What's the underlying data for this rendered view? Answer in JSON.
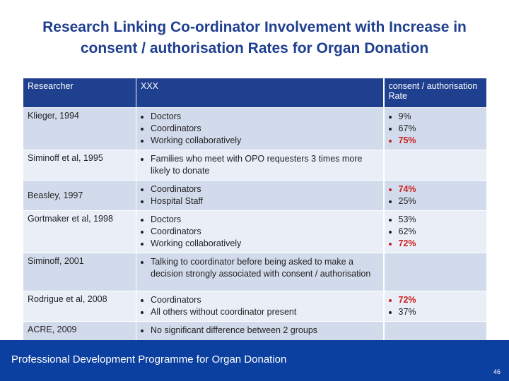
{
  "title": "Research Linking Co-ordinator Involvement with Increase in consent / authorisation Rates for Organ Donation",
  "table": {
    "headers": [
      "Researcher",
      "XXX",
      "consent / authorisation Rate"
    ],
    "rows": [
      {
        "researcher": "Klieger, 1994",
        "items": [
          "Doctors",
          "Coordinators",
          "Working collaboratively"
        ],
        "rates": [
          {
            "text": "9%",
            "highlight": false
          },
          {
            "text": "67%",
            "highlight": false
          },
          {
            "text": "75%",
            "highlight": true
          }
        ]
      },
      {
        "researcher": "Siminoff et al, 1995",
        "items": [
          "Families who meet with OPO requesters 3 times more likely to donate"
        ],
        "rates": []
      },
      {
        "researcher": "Beasley, 1997",
        "items": [
          "Coordinators",
          "Hospital Staff"
        ],
        "rates": [
          {
            "text": "74%",
            "highlight": true
          },
          {
            "text": "25%",
            "highlight": false
          }
        ]
      },
      {
        "researcher": "Gortmaker et al, 1998",
        "items": [
          "Doctors",
          "Coordinators",
          "Working collaboratively"
        ],
        "rates": [
          {
            "text": "53%",
            "highlight": false
          },
          {
            "text": "62%",
            "highlight": false
          },
          {
            "text": "72%",
            "highlight": true
          }
        ]
      },
      {
        "researcher": "Siminoff, 2001",
        "items": [
          "Talking to coordinator before being asked to make a decision strongly associated with consent / authorisation"
        ],
        "rates": []
      },
      {
        "researcher": "Rodrigue et al, 2008",
        "items": [
          "Coordinators",
          "All others without coordinator present"
        ],
        "rates": [
          {
            "text": "72%",
            "highlight": true
          },
          {
            "text": "37%",
            "highlight": false
          }
        ]
      },
      {
        "researcher": "ACRE, 2009",
        "items": [
          "No significant difference between 2 groups"
        ],
        "rates": []
      }
    ]
  },
  "footer": {
    "text": "Professional Development Programme for Organ Donation",
    "page_number": "46"
  },
  "colors": {
    "title": "#1f3f8f",
    "header_bg": "#1f3f8f",
    "row_dark": "#d2dbec",
    "row_light": "#e9eef7",
    "highlight": "#cc1f1f",
    "footer_bg": "#0b3fa0"
  }
}
